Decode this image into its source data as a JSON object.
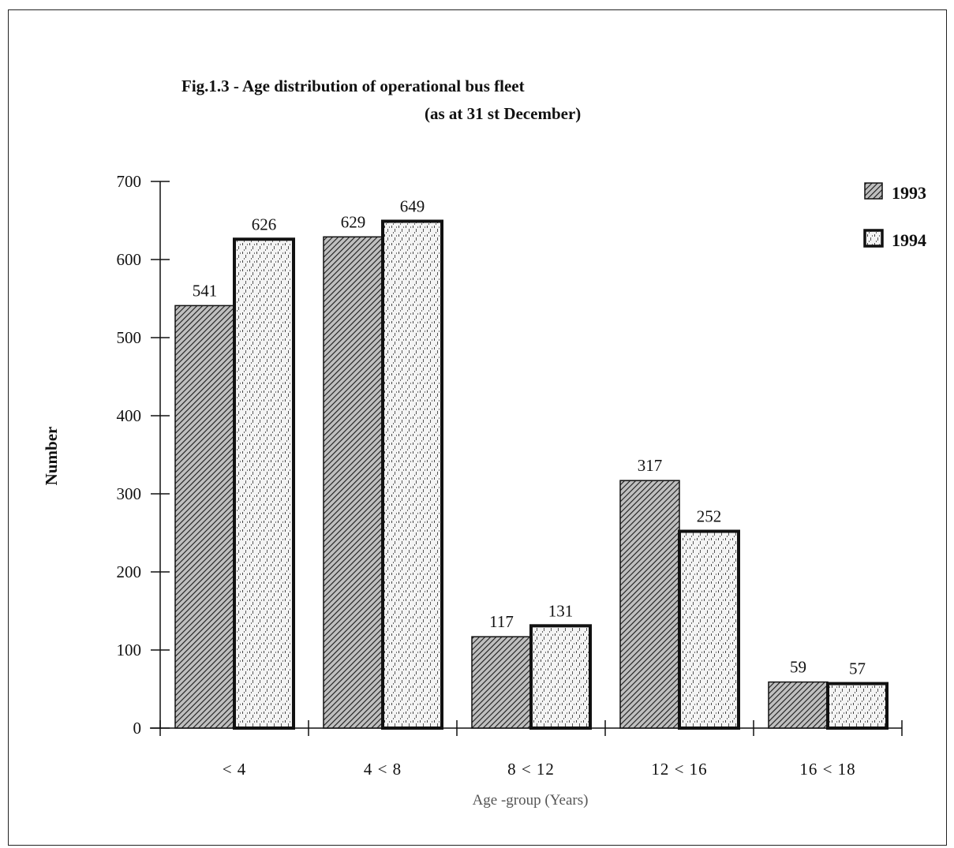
{
  "chart_data": {
    "type": "bar",
    "title": "Fig.1.3 - Age distribution of operational bus fleet",
    "subtitle": "(as at 31 st December)",
    "xlabel": "Age -group (Years)",
    "ylabel": "Number",
    "ylim": [
      0,
      700
    ],
    "yticks": [
      0,
      100,
      200,
      300,
      400,
      500,
      600,
      700
    ],
    "grid": false,
    "legend_position": "top-right",
    "categories": [
      "< 4",
      "4 < 8",
      "8 < 12",
      "12 < 16",
      "16 < 18"
    ],
    "series": [
      {
        "name": "1993",
        "values": [
          541,
          629,
          117,
          317,
          59
        ],
        "pattern": "hatched",
        "color": "#555555"
      },
      {
        "name": "1994",
        "values": [
          626,
          649,
          131,
          252,
          57
        ],
        "pattern": "dotted",
        "color": "#dddddd"
      }
    ]
  }
}
